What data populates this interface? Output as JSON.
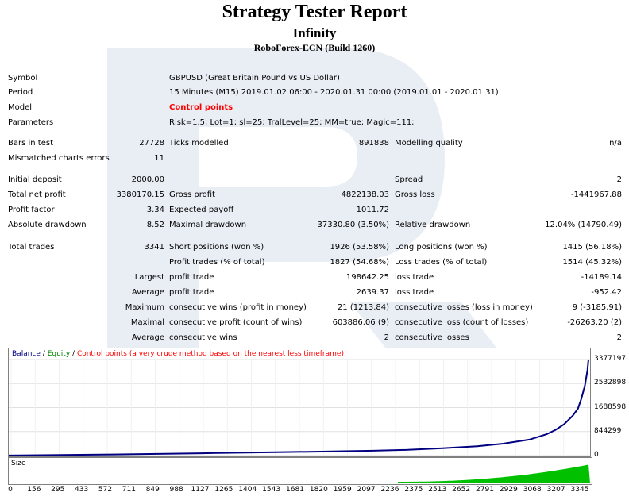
{
  "report": {
    "title": "Strategy Tester Report",
    "expert": "Infinity",
    "server": "RoboForex-ECN (Build 1260)"
  },
  "info": {
    "symbol_label": "Symbol",
    "symbol": "GBPUSD (Great Britain Pound vs US Dollar)",
    "period_label": "Period",
    "period": "15 Minutes (M15) 2019.01.02 06:00 - 2020.01.31 00:00 (2019.01.01 - 2020.01.31)",
    "model_label": "Model",
    "model": "Control points",
    "params_label": "Parameters",
    "params": "Risk=1.5; Lot=1; sl=25; TralLevel=25; MM=true; Magic=111;"
  },
  "stats": {
    "bars_label": "Bars in test",
    "bars": "27728",
    "ticks_label": "Ticks modelled",
    "ticks": "891838",
    "mq_label": "Modelling quality",
    "mq": "n/a",
    "mce_label": "Mismatched charts errors",
    "mce": "11",
    "dep_label": "Initial deposit",
    "dep": "2000.00",
    "spread_label": "Spread",
    "spread": "2",
    "tnp_label": "Total net profit",
    "tnp": "3380170.15",
    "gp_label": "Gross profit",
    "gp": "4822138.03",
    "gl_label": "Gross loss",
    "gl": "-1441967.88",
    "pf_label": "Profit factor",
    "pf": "3.34",
    "ep_label": "Expected payoff",
    "ep": "1011.72",
    "ad_label": "Absolute drawdown",
    "ad": "8.52",
    "md_label": "Maximal drawdown",
    "md": "37330.80 (3.50%)",
    "rd_label": "Relative drawdown",
    "rd": "12.04% (14790.49)",
    "tt_label": "Total trades",
    "tt": "3341",
    "sp_label": "Short positions (won %)",
    "sp": "1926 (53.58%)",
    "lp_label": "Long positions (won %)",
    "lp": "1415 (56.18%)",
    "pt_label": "Profit trades (% of total)",
    "pt": "1827 (54.68%)",
    "lt_label": "Loss trades (% of total)",
    "lt": "1514 (45.32%)",
    "largest_label": "Largest",
    "lpt_label": "profit trade",
    "lpt": "198642.25",
    "llt_label": "loss trade",
    "llt": "-14189.14",
    "average_label": "Average",
    "apt_label": "profit trade",
    "apt": "2639.37",
    "alt_label": "loss trade",
    "alt": "-952.42",
    "maximum_label": "Maximum",
    "mcw_label": "consecutive wins (profit in money)",
    "mcw": "21 (1213.84)",
    "mcl_label": "consecutive losses (loss in money)",
    "mcl": "9 (-3185.91)",
    "maximal_label": "Maximal",
    "mcp_label": "consecutive profit (count of wins)",
    "mcp": "603886.06 (9)",
    "mcls_label": "consecutive loss (count of losses)",
    "mcls": "-26263.20 (2)",
    "average2_label": "Average",
    "acw_label": "consecutive wins",
    "acw": "2",
    "acl_label": "consecutive losses",
    "acl": "2"
  },
  "chart_data": {
    "type": "line",
    "legend": [
      "Balance",
      "Equity",
      "Control points (a very crude method based on the nearest less timeframe)"
    ],
    "colors": {
      "balance": "#000080",
      "equity": "#008000",
      "control": "#ff0000",
      "size": "#00c000"
    },
    "ylim": [
      0,
      3377197
    ],
    "yticks": [
      "3377197",
      "2532898",
      "1688598",
      "844299",
      "0"
    ],
    "xticks": [
      "0",
      "156",
      "295",
      "433",
      "572",
      "711",
      "849",
      "988",
      "1127",
      "1265",
      "1404",
      "1543",
      "1681",
      "1820",
      "1959",
      "2097",
      "2236",
      "2375",
      "2513",
      "2652",
      "2791",
      "2929",
      "3068",
      "3207",
      "3345"
    ],
    "xlim": [
      0,
      3341
    ],
    "series": [
      {
        "name": "Balance",
        "x": [
          0,
          300,
          600,
          900,
          1200,
          1500,
          1800,
          2100,
          2300,
          2500,
          2700,
          2850,
          3000,
          3100,
          3150,
          3200,
          3250,
          3280,
          3300,
          3320,
          3335,
          3341
        ],
        "values": [
          2000,
          20000,
          40000,
          62000,
          88000,
          115000,
          140000,
          170000,
          200000,
          260000,
          330000,
          420000,
          560000,
          750000,
          900000,
          1100000,
          1400000,
          1650000,
          2000000,
          2450000,
          3000000,
          3380170
        ]
      }
    ],
    "size_panel_label": "Size"
  }
}
